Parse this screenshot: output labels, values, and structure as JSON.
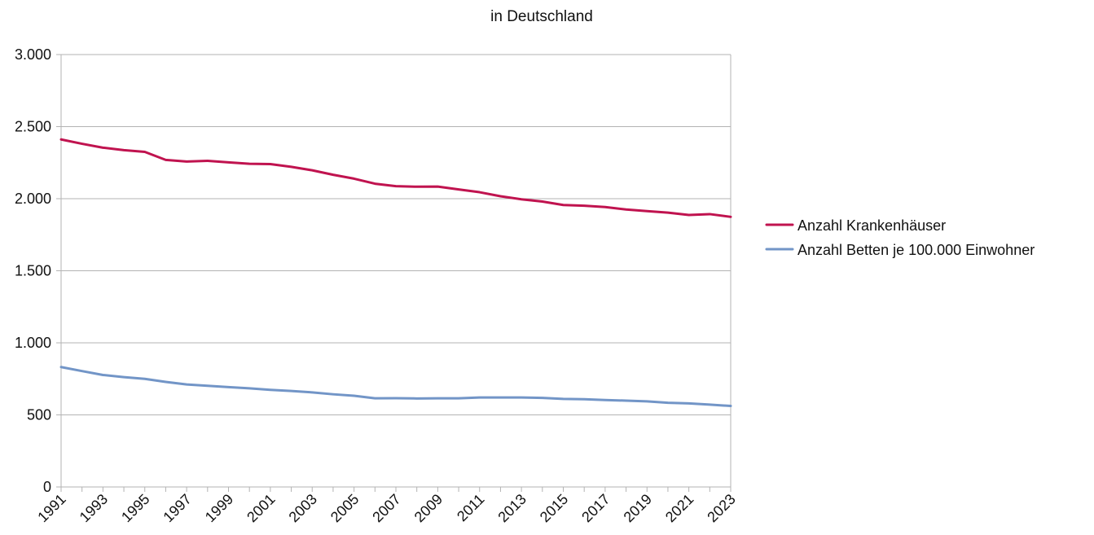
{
  "chart_data": {
    "type": "line",
    "title": "in Deutschland",
    "xlabel": "",
    "ylabel": "",
    "x": [
      1991,
      1992,
      1993,
      1994,
      1995,
      1996,
      1997,
      1998,
      1999,
      2000,
      2001,
      2002,
      2003,
      2004,
      2005,
      2006,
      2007,
      2008,
      2009,
      2010,
      2011,
      2012,
      2013,
      2014,
      2015,
      2016,
      2017,
      2018,
      2019,
      2020,
      2021,
      2022,
      2023
    ],
    "x_tick_labels": [
      "1991",
      "1993",
      "1995",
      "1997",
      "1999",
      "2001",
      "2003",
      "2005",
      "2007",
      "2009",
      "2011",
      "2013",
      "2015",
      "2017",
      "2019",
      "2021",
      "2023"
    ],
    "ylim": [
      0,
      3000
    ],
    "y_ticks": [
      0,
      500,
      1000,
      1500,
      2000,
      2500,
      3000
    ],
    "y_tick_labels": [
      "0",
      "500",
      "1.000",
      "1.500",
      "2.000",
      "2.500",
      "3.000"
    ],
    "grid": true,
    "legend_position": "right",
    "series": [
      {
        "name": "Anzahl Krankenhäuser",
        "color": "#c0134f",
        "values": [
          2411,
          2381,
          2354,
          2337,
          2325,
          2269,
          2258,
          2263,
          2252,
          2242,
          2240,
          2221,
          2197,
          2166,
          2139,
          2104,
          2087,
          2083,
          2084,
          2064,
          2045,
          2017,
          1996,
          1980,
          1956,
          1951,
          1942,
          1925,
          1914,
          1903,
          1887,
          1893,
          1874
        ]
      },
      {
        "name": "Anzahl Betten je 100.000 Einwohner",
        "color": "#7295c7",
        "values": [
          832,
          804,
          777,
          762,
          750,
          729,
          711,
          702,
          693,
          684,
          674,
          666,
          656,
          643,
          633,
          615,
          616,
          614,
          615,
          615,
          621,
          621,
          621,
          618,
          611,
          609,
          603,
          599,
          594,
          584,
          580,
          571,
          562
        ]
      }
    ]
  }
}
